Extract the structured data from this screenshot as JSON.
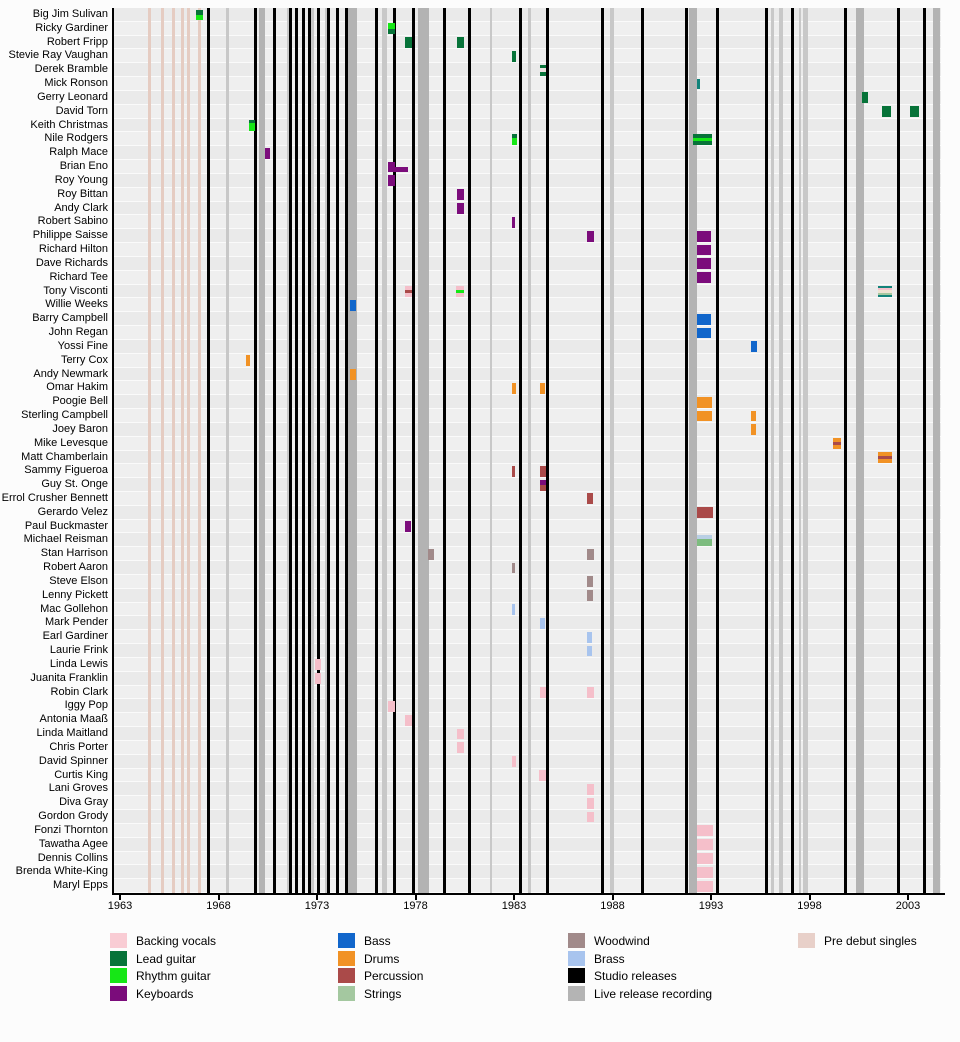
{
  "chart_data": {
    "type": "bar",
    "subtype": "gantt-timeline",
    "title": "",
    "xlabel": "",
    "ylabel": "",
    "axis": {
      "year_min": 1963,
      "year_max": 2004.7,
      "tick_years": [
        1963,
        1968,
        1973,
        1978,
        1983,
        1988,
        1993,
        1998,
        2003
      ]
    },
    "palette": {
      "bv": "#f5bfca",
      "lead": "#077339",
      "rhythm": "#16e716",
      "keys": "#7b0c7b",
      "bass": "#1166cb",
      "drums": "#f19225",
      "perc": "#aa4a49",
      "strings": "#a4c8a0",
      "wood": "#a18a8a",
      "brass": "#a8c4ee",
      "studio": "#000000",
      "live": "#b4b4b4",
      "pre_debut": "#e5ccc2",
      "teal": "#12837a"
    },
    "studio_release_years": [
      1967.47,
      1969.9,
      1970.82,
      1971.68,
      1971.98,
      1972.34,
      1972.64,
      1973.1,
      1973.56,
      1974.02,
      1974.52,
      1976.04,
      1976.91,
      1977.92,
      1979.45,
      1980.76,
      1983.35,
      1984.72,
      1987.47,
      1989.5,
      1991.78,
      1993.35,
      1995.84,
      1997.16,
      1999.85,
      2002.54,
      2003.86
    ],
    "live_release_bars": [
      {
        "year": 1968.38,
        "w": 3
      },
      {
        "year": 1970.08,
        "w": 6
      },
      {
        "year": 1971.5,
        "w": 3
      },
      {
        "year": 1972.72,
        "w": 3
      },
      {
        "year": 1973.4,
        "w": 3
      },
      {
        "year": 1974.57,
        "w": 9
      },
      {
        "year": 1976.3,
        "w": 5
      },
      {
        "year": 1978.12,
        "w": 11
      },
      {
        "year": 1981.8,
        "w": 2
      },
      {
        "year": 1983.7,
        "w": 3
      },
      {
        "year": 1987.87,
        "w": 4
      },
      {
        "year": 1991.88,
        "w": 8
      },
      {
        "year": 1996.04,
        "w": 3
      },
      {
        "year": 1996.45,
        "w": 4
      },
      {
        "year": 1997.46,
        "w": 2
      },
      {
        "year": 1997.67,
        "w": 5
      },
      {
        "year": 2000.35,
        "w": 8
      },
      {
        "year": 2004.26,
        "w": 7
      }
    ],
    "pre_debut_single_years": [
      1964.42,
      1965.08,
      1965.64,
      1966.1,
      1966.4,
      1966.96
    ],
    "rows": [
      {
        "name": "Big Jim Sulivan",
        "blocks": [
          {
            "s": 1966.85,
            "e": 1967.2,
            "seg": [
              "lead",
              "rhythm"
            ]
          }
        ]
      },
      {
        "name": "Ricky Gardiner",
        "blocks": [
          {
            "s": 1976.6,
            "e": 1976.95,
            "seg": [
              "rhythm",
              "lead"
            ]
          }
        ]
      },
      {
        "name": "Robert Fripp",
        "blocks": [
          {
            "s": 1977.45,
            "e": 1977.8,
            "seg": [
              "lead"
            ]
          },
          {
            "s": 1980.1,
            "e": 1980.45,
            "seg": [
              "lead"
            ]
          }
        ]
      },
      {
        "name": "Stevie Ray Vaughan",
        "blocks": [
          {
            "s": 1982.9,
            "e": 1983.1,
            "seg": [
              "lead"
            ]
          }
        ]
      },
      {
        "name": "Derek Bramble",
        "blocks": [
          {
            "s": 1984.3,
            "e": 1984.6,
            "seg": [
              "lead",
              "#eee2e2",
              "lead"
            ]
          }
        ]
      },
      {
        "name": "Mick Ronson",
        "blocks": [
          {
            "s": 1992.28,
            "e": 1992.42,
            "seg": [
              "teal"
            ]
          }
        ]
      },
      {
        "name": "Gerry Leonard",
        "blocks": [
          {
            "s": 2000.65,
            "e": 2000.98,
            "seg": [
              "lead"
            ]
          }
        ]
      },
      {
        "name": "David Torn",
        "blocks": [
          {
            "s": 2001.68,
            "e": 2002.15,
            "seg": [
              "lead"
            ]
          },
          {
            "s": 2003.1,
            "e": 2003.55,
            "seg": [
              "lead"
            ]
          }
        ]
      },
      {
        "name": "Keith Christmas",
        "blocks": [
          {
            "s": 1969.55,
            "e": 1969.85,
            "seg": [
              "lead",
              "rhythm",
              "rhythm",
              "rhythm"
            ]
          }
        ]
      },
      {
        "name": "Nile Rodgers",
        "blocks": [
          {
            "s": 1982.9,
            "e": 1983.15,
            "seg": [
              "lead",
              "rhythm",
              "rhythm"
            ]
          },
          {
            "s": 1992.1,
            "e": 1993.05,
            "seg": [
              "lead",
              "rhythm",
              "lead"
            ]
          }
        ]
      },
      {
        "name": "Ralph Mace",
        "blocks": [
          {
            "s": 1970.35,
            "e": 1970.62,
            "seg": [
              "keys"
            ]
          }
        ]
      },
      {
        "name": "Brian Eno",
        "blocks": [
          {
            "s": 1976.58,
            "e": 1976.95,
            "seg": [
              "keys"
            ],
            "half": "top"
          },
          {
            "s": 1976.58,
            "e": 1977.6,
            "seg": [
              "keys"
            ],
            "half": "bottom"
          }
        ]
      },
      {
        "name": "Roy Young",
        "blocks": [
          {
            "s": 1976.58,
            "e": 1976.95,
            "seg": [
              "keys"
            ]
          }
        ]
      },
      {
        "name": "Roy Bittan",
        "blocks": [
          {
            "s": 1980.1,
            "e": 1980.45,
            "seg": [
              "keys"
            ]
          }
        ]
      },
      {
        "name": "Andy Clark",
        "blocks": [
          {
            "s": 1980.1,
            "e": 1980.45,
            "seg": [
              "keys"
            ]
          }
        ]
      },
      {
        "name": "Robert Sabino",
        "blocks": [
          {
            "s": 1982.9,
            "e": 1983.05,
            "seg": [
              "keys"
            ]
          }
        ]
      },
      {
        "name": "Philippe Saisse",
        "blocks": [
          {
            "s": 1986.72,
            "e": 1987.05,
            "seg": [
              "keys"
            ]
          },
          {
            "s": 1992.3,
            "e": 1993.0,
            "seg": [
              "keys"
            ]
          }
        ]
      },
      {
        "name": "Richard Hilton",
        "blocks": [
          {
            "s": 1992.3,
            "e": 1993.0,
            "seg": [
              "keys"
            ]
          }
        ]
      },
      {
        "name": "Dave Richards",
        "blocks": [
          {
            "s": 1992.3,
            "e": 1993.0,
            "seg": [
              "keys"
            ]
          }
        ]
      },
      {
        "name": "Richard Tee",
        "blocks": [
          {
            "s": 1992.3,
            "e": 1993.0,
            "seg": [
              "keys"
            ]
          }
        ]
      },
      {
        "name": "Tony Visconti",
        "blocks": [
          {
            "s": 1977.45,
            "e": 1977.8,
            "seg": [
              "bv",
              "perc",
              "bv"
            ]
          },
          {
            "s": 1980.05,
            "e": 1980.45,
            "seg": [
              "bv",
              "rhythm",
              "bv"
            ]
          },
          {
            "s": 2001.5,
            "e": 2002.2,
            "seg": [
              "teal",
              "bv",
              "#efe3d2",
              "strings",
              "teal"
            ]
          }
        ]
      },
      {
        "name": "Willie Weeks",
        "blocks": [
          {
            "s": 1974.68,
            "e": 1974.98,
            "seg": [
              "bass"
            ]
          }
        ]
      },
      {
        "name": "Barry Campbell",
        "blocks": [
          {
            "s": 1992.3,
            "e": 1993.0,
            "seg": [
              "bass"
            ]
          }
        ]
      },
      {
        "name": "John Regan",
        "blocks": [
          {
            "s": 1992.3,
            "e": 1993.0,
            "seg": [
              "bass"
            ]
          }
        ]
      },
      {
        "name": "Yossi Fine",
        "blocks": [
          {
            "s": 1995.05,
            "e": 1995.32,
            "seg": [
              "bass"
            ]
          }
        ]
      },
      {
        "name": "Terry Cox",
        "blocks": [
          {
            "s": 1969.4,
            "e": 1969.58,
            "seg": [
              "drums"
            ]
          }
        ]
      },
      {
        "name": "Andy Newmark",
        "blocks": [
          {
            "s": 1974.68,
            "e": 1974.98,
            "seg": [
              "drums"
            ]
          }
        ]
      },
      {
        "name": "Omar Hakim",
        "blocks": [
          {
            "s": 1982.9,
            "e": 1983.08,
            "seg": [
              "drums"
            ]
          },
          {
            "s": 1984.3,
            "e": 1984.58,
            "seg": [
              "drums"
            ]
          }
        ]
      },
      {
        "name": "Poogie Bell",
        "blocks": [
          {
            "s": 1992.3,
            "e": 1993.05,
            "seg": [
              "drums"
            ]
          }
        ]
      },
      {
        "name": "Sterling Campbell",
        "blocks": [
          {
            "s": 1992.3,
            "e": 1993.05,
            "seg": [
              "drums"
            ]
          },
          {
            "s": 1995.02,
            "e": 1995.3,
            "seg": [
              "drums"
            ]
          }
        ]
      },
      {
        "name": "Joey Baron",
        "blocks": [
          {
            "s": 1995.02,
            "e": 1995.3,
            "seg": [
              "drums"
            ]
          }
        ]
      },
      {
        "name": "Mike Levesque",
        "blocks": [
          {
            "s": 1999.2,
            "e": 1999.62,
            "seg": [
              "drums",
              "perc",
              "drums"
            ]
          }
        ]
      },
      {
        "name": "Matt Chamberlain",
        "blocks": [
          {
            "s": 2001.5,
            "e": 2002.2,
            "seg": [
              "drums",
              "perc",
              "drums"
            ]
          }
        ]
      },
      {
        "name": "Sammy Figueroa",
        "blocks": [
          {
            "s": 1982.9,
            "e": 1983.05,
            "seg": [
              "perc"
            ]
          },
          {
            "s": 1984.3,
            "e": 1984.6,
            "seg": [
              "perc"
            ]
          }
        ]
      },
      {
        "name": "Guy St. Onge",
        "blocks": [
          {
            "s": 1984.3,
            "e": 1984.6,
            "seg": [
              "keys",
              "perc"
            ]
          }
        ]
      },
      {
        "name": "Errol Crusher Bennett",
        "blocks": [
          {
            "s": 1986.72,
            "e": 1987.02,
            "seg": [
              "perc"
            ]
          }
        ]
      },
      {
        "name": "Gerardo Velez",
        "blocks": [
          {
            "s": 1992.3,
            "e": 1993.1,
            "seg": [
              "perc"
            ]
          }
        ]
      },
      {
        "name": "Paul Buckmaster",
        "blocks": [
          {
            "s": 1977.48,
            "e": 1977.75,
            "seg": [
              "keys"
            ]
          }
        ]
      },
      {
        "name": "Michael Reisman",
        "blocks": [
          {
            "s": 1992.3,
            "e": 1993.05,
            "seg": [
              "#b9cfe4",
              "#7dbc7f",
              "#7dbc7f"
            ]
          }
        ]
      },
      {
        "name": "Stan Harrison",
        "blocks": [
          {
            "s": 1978.65,
            "e": 1978.95,
            "seg": [
              "wood"
            ]
          },
          {
            "s": 1986.72,
            "e": 1987.05,
            "seg": [
              "wood"
            ]
          }
        ]
      },
      {
        "name": "Robert Aaron",
        "blocks": [
          {
            "s": 1982.9,
            "e": 1983.05,
            "seg": [
              "wood"
            ]
          }
        ]
      },
      {
        "name": "Steve Elson",
        "blocks": [
          {
            "s": 1986.72,
            "e": 1987.02,
            "seg": [
              "wood"
            ]
          }
        ]
      },
      {
        "name": "Lenny Pickett",
        "blocks": [
          {
            "s": 1986.72,
            "e": 1987.02,
            "seg": [
              "wood"
            ]
          }
        ]
      },
      {
        "name": "Mac Gollehon",
        "blocks": [
          {
            "s": 1982.9,
            "e": 1983.05,
            "seg": [
              "brass"
            ]
          }
        ]
      },
      {
        "name": "Mark Pender",
        "blocks": [
          {
            "s": 1984.3,
            "e": 1984.55,
            "seg": [
              "brass"
            ]
          }
        ]
      },
      {
        "name": "Earl Gardiner",
        "blocks": [
          {
            "s": 1986.72,
            "e": 1986.98,
            "seg": [
              "brass"
            ]
          }
        ]
      },
      {
        "name": "Laurie Frink",
        "blocks": [
          {
            "s": 1986.72,
            "e": 1986.98,
            "seg": [
              "brass"
            ]
          }
        ]
      },
      {
        "name": "Linda Lewis",
        "blocks": [
          {
            "s": 1972.9,
            "e": 1973.2,
            "seg": [
              "bv"
            ]
          }
        ]
      },
      {
        "name": "Juanita Franklin",
        "blocks": [
          {
            "s": 1972.9,
            "e": 1973.2,
            "seg": [
              "bv"
            ]
          }
        ]
      },
      {
        "name": "Robin Clark",
        "blocks": [
          {
            "s": 1984.3,
            "e": 1984.6,
            "seg": [
              "bv"
            ]
          },
          {
            "s": 1986.72,
            "e": 1987.05,
            "seg": [
              "bv"
            ]
          }
        ]
      },
      {
        "name": "Iggy Pop",
        "blocks": [
          {
            "s": 1976.58,
            "e": 1976.95,
            "seg": [
              "bv"
            ]
          }
        ]
      },
      {
        "name": "Antonia Maaß",
        "blocks": [
          {
            "s": 1977.48,
            "e": 1977.8,
            "seg": [
              "bv"
            ]
          }
        ]
      },
      {
        "name": "Linda Maitland",
        "blocks": [
          {
            "s": 1980.1,
            "e": 1980.45,
            "seg": [
              "bv"
            ]
          }
        ]
      },
      {
        "name": "Chris Porter",
        "blocks": [
          {
            "s": 1980.1,
            "e": 1980.45,
            "seg": [
              "bv"
            ]
          }
        ]
      },
      {
        "name": "David Spinner",
        "blocks": [
          {
            "s": 1982.9,
            "e": 1983.08,
            "seg": [
              "bv"
            ]
          }
        ]
      },
      {
        "name": "Curtis King",
        "blocks": [
          {
            "s": 1984.28,
            "e": 1984.6,
            "seg": [
              "bv"
            ]
          }
        ]
      },
      {
        "name": "Lani Groves",
        "blocks": [
          {
            "s": 1986.72,
            "e": 1987.05,
            "seg": [
              "bv"
            ]
          }
        ]
      },
      {
        "name": "Diva Gray",
        "blocks": [
          {
            "s": 1986.72,
            "e": 1987.05,
            "seg": [
              "bv"
            ]
          }
        ]
      },
      {
        "name": "Gordon Grody",
        "blocks": [
          {
            "s": 1986.72,
            "e": 1987.05,
            "seg": [
              "bv"
            ]
          }
        ]
      },
      {
        "name": "Fonzi Thornton",
        "blocks": [
          {
            "s": 1992.3,
            "e": 1993.1,
            "seg": [
              "bv"
            ]
          }
        ]
      },
      {
        "name": "Tawatha Agee",
        "blocks": [
          {
            "s": 1992.3,
            "e": 1993.1,
            "seg": [
              "bv"
            ]
          }
        ]
      },
      {
        "name": "Dennis Collins",
        "blocks": [
          {
            "s": 1992.3,
            "e": 1993.1,
            "seg": [
              "bv"
            ]
          }
        ]
      },
      {
        "name": "Brenda White-King",
        "blocks": [
          {
            "s": 1992.3,
            "e": 1993.1,
            "seg": [
              "bv"
            ]
          }
        ]
      },
      {
        "name": "Maryl Epps",
        "blocks": [
          {
            "s": 1992.3,
            "e": 1993.1,
            "seg": [
              "bv"
            ]
          }
        ]
      }
    ],
    "legend": {
      "position": "bottom",
      "columns": [
        [
          {
            "label": "Backing vocals",
            "color": "#f9ccd4"
          },
          {
            "label": "Lead guitar",
            "color": "#077339"
          },
          {
            "label": "Rhythm guitar",
            "color": "#16e716"
          },
          {
            "label": "Keyboards",
            "color": "#7b0c7b"
          }
        ],
        [
          {
            "label": "Bass",
            "color": "#1166cb"
          },
          {
            "label": "Drums",
            "color": "#f19225"
          },
          {
            "label": "Percussion",
            "color": "#aa4a49"
          },
          {
            "label": "Strings",
            "color": "#a4c8a0"
          }
        ],
        [
          {
            "label": "Woodwind",
            "color": "#a18a8a"
          },
          {
            "label": "Brass",
            "color": "#a8c4ee"
          },
          {
            "label": "Studio releases",
            "color": "#000000"
          },
          {
            "label": "Live release recording",
            "color": "#b4b4b4"
          }
        ],
        [
          {
            "label": "Pre debut singles",
            "color": "#e8d0c9"
          }
        ]
      ]
    }
  }
}
